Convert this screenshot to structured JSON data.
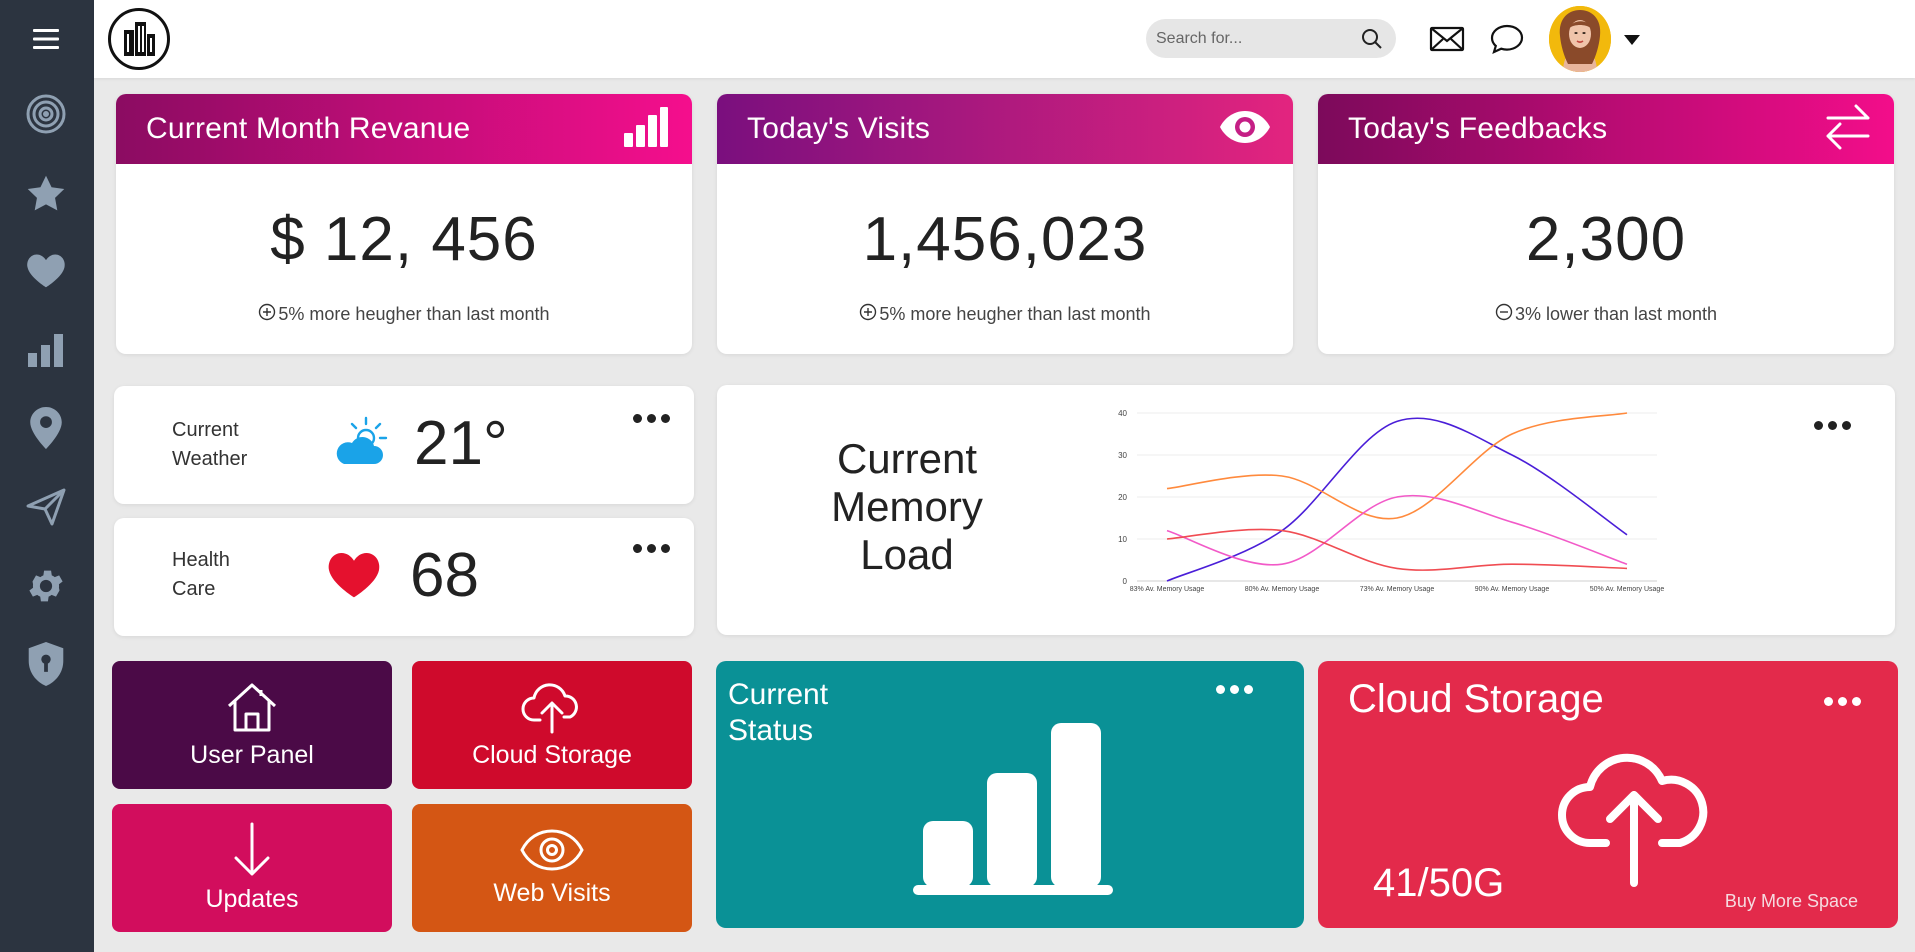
{
  "sidebar": {
    "items": [
      {
        "name": "menu"
      },
      {
        "name": "target"
      },
      {
        "name": "favorites"
      },
      {
        "name": "likes"
      },
      {
        "name": "analytics"
      },
      {
        "name": "location"
      },
      {
        "name": "send"
      },
      {
        "name": "settings"
      },
      {
        "name": "security"
      }
    ]
  },
  "header": {
    "search_placeholder": "Search for..."
  },
  "stats": [
    {
      "title": "Current Month Revanue",
      "value": "$ 12, 456",
      "note": "5% more heugher than last month",
      "trend": "up",
      "icon": "bar-chart-icon"
    },
    {
      "title": "Today's Visits",
      "value": "1,456,023",
      "note": "5% more heugher than last month",
      "trend": "up",
      "icon": "eye-icon"
    },
    {
      "title": "Today's Feedbacks",
      "value": "2,300",
      "note": "3% lower than last month",
      "trend": "down",
      "icon": "arrows-exchange-icon"
    }
  ],
  "weather": {
    "label_line1": "Current",
    "label_line2": "Weather",
    "value": "21°"
  },
  "health": {
    "label_line1": "Health",
    "label_line2": "Care",
    "value": "68"
  },
  "memory": {
    "title_line1": "Current",
    "title_line2": "Memory",
    "title_line3": "Load"
  },
  "chart_data": {
    "type": "line",
    "categories": [
      "83% Av. Memory Usage",
      "80% Av. Memory Usage",
      "73% Av. Memory Usage",
      "90% Av. Memory Usage",
      "50% Av. Memory Usage"
    ],
    "series": [
      {
        "values": [
          0,
          12,
          38,
          30,
          11
        ],
        "color": "#4a1ed8"
      },
      {
        "values": [
          22,
          25,
          15,
          35,
          40
        ],
        "color": "#ff8a3d"
      },
      {
        "values": [
          12,
          4,
          20,
          14,
          4
        ],
        "color": "#f25ac8"
      },
      {
        "values": [
          10,
          12,
          3,
          4,
          3
        ],
        "color": "#f04c52"
      }
    ],
    "ylim": [
      0,
      40
    ],
    "yticks": [
      "0",
      "10",
      "20",
      "30",
      "40"
    ],
    "grid": true
  },
  "tiles": [
    {
      "label": "User Panel",
      "color": "#4b0a47",
      "icon": "home-icon"
    },
    {
      "label": "Cloud Storage",
      "color": "#cf0a2c",
      "icon": "cloud-upload-icon"
    },
    {
      "label": "Updates",
      "color": "#d20d5d",
      "icon": "arrow-down-icon"
    },
    {
      "label": "Web Visits",
      "color": "#d45614",
      "icon": "eye-icon"
    }
  ],
  "status": {
    "title_line1": "Current",
    "title_line2": "Status",
    "color": "#0a9196"
  },
  "cloud": {
    "title": "Cloud Storage",
    "used": "41/50G",
    "buy_label": "Buy More Space",
    "color": "#e32a4b"
  }
}
